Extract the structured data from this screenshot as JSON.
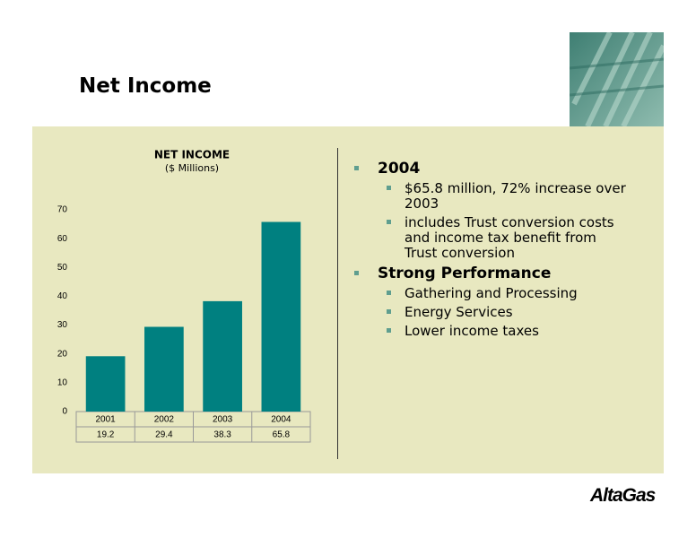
{
  "title": "Net Income",
  "chart_data": {
    "type": "bar",
    "title": "NET INCOME",
    "subtitle": "($ Millions)",
    "categories": [
      "2001",
      "2002",
      "2003",
      "2004"
    ],
    "values": [
      19.2,
      29.4,
      38.3,
      65.8
    ],
    "color": "#008080",
    "ylim": [
      0,
      70
    ],
    "yticks": [
      0,
      10,
      20,
      30,
      40,
      50,
      60,
      70
    ],
    "grid": false
  },
  "bullets": [
    {
      "text": "2004",
      "items": [
        "$65.8 million, 72% increase over 2003",
        "includes Trust conversion costs and income tax benefit from Trust conversion"
      ]
    },
    {
      "text": "Strong Performance",
      "items": [
        "Gathering and Processing",
        "Energy Services",
        "Lower income taxes"
      ]
    }
  ],
  "logo": "AltaGas"
}
